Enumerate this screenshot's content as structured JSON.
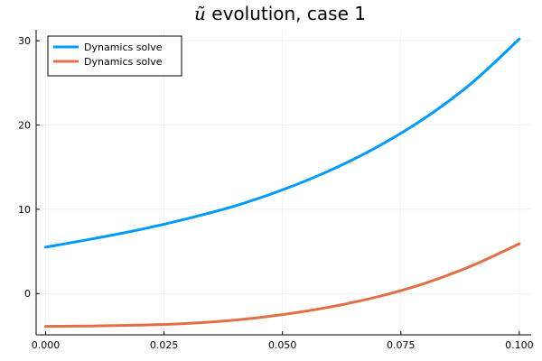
{
  "chart_data": {
    "type": "line",
    "title": {
      "symbol": "ũ",
      "text": " evolution, case 1"
    },
    "xlabel": "",
    "ylabel": "",
    "xlim": [
      -0.002,
      0.1025
    ],
    "ylim": [
      -4.9,
      31.3
    ],
    "x_ticks": [
      {
        "value": 0.0,
        "label": "0.000"
      },
      {
        "value": 0.025,
        "label": "0.025"
      },
      {
        "value": 0.05,
        "label": "0.050"
      },
      {
        "value": 0.075,
        "label": "0.075"
      },
      {
        "value": 0.1,
        "label": "0.100"
      }
    ],
    "y_ticks": [
      {
        "value": 0,
        "label": "0"
      },
      {
        "value": 10,
        "label": "10"
      },
      {
        "value": 20,
        "label": "20"
      },
      {
        "value": 30,
        "label": "30"
      }
    ],
    "grid": true,
    "legend_position": "top-left",
    "x": [
      0.0,
      0.01,
      0.02,
      0.03,
      0.04,
      0.05,
      0.06,
      0.07,
      0.08,
      0.09,
      0.1
    ],
    "series": [
      {
        "name": "Dynamics solve",
        "color": "#009AFA",
        "values": [
          5.5,
          6.5,
          7.6,
          8.9,
          10.4,
          12.3,
          14.6,
          17.4,
          20.8,
          25.0,
          30.2
        ]
      },
      {
        "name": "Dynamics solve",
        "color": "#E26F46",
        "values": [
          -3.9,
          -3.85,
          -3.75,
          -3.55,
          -3.15,
          -2.5,
          -1.6,
          -0.4,
          1.2,
          3.3,
          5.9
        ]
      }
    ]
  }
}
